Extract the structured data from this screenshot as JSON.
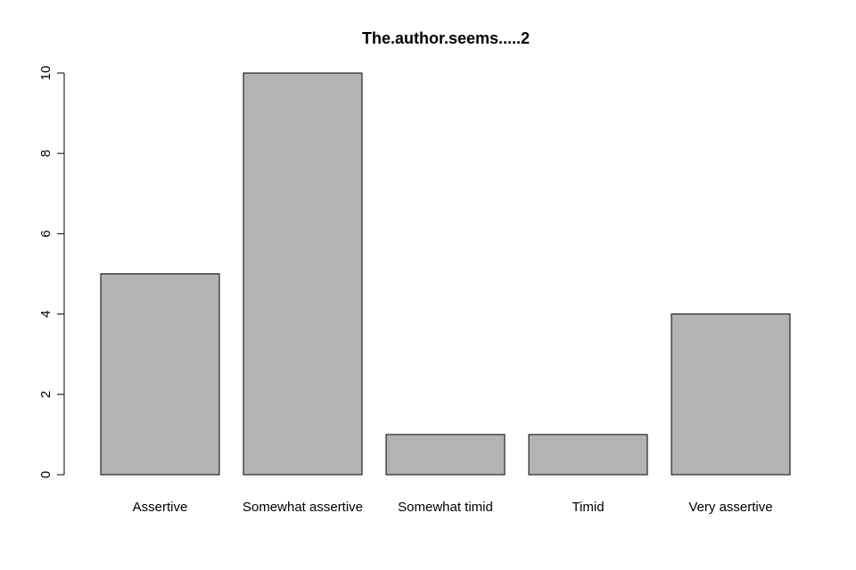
{
  "chart_data": {
    "type": "bar",
    "title": "The.author.seems.....2",
    "xlabel": "",
    "ylabel": "",
    "categories": [
      "Assertive",
      "Somewhat assertive",
      "Somewhat timid",
      "Timid",
      "Very assertive"
    ],
    "values": [
      5,
      10,
      1,
      1,
      4
    ],
    "ylim": [
      0,
      10
    ],
    "yticks": [
      0,
      2,
      4,
      6,
      8,
      10
    ],
    "bar_color": "#b3b3b3",
    "grid": false
  }
}
